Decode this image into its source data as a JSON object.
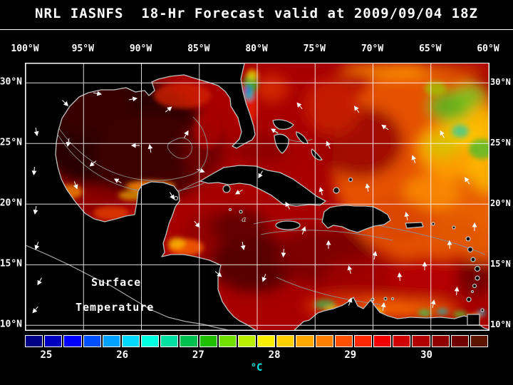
{
  "title": "NRL IASNFS  18-Hr Forecast valid at 2009/09/04 18Z",
  "axes": {
    "lon_labels": [
      "100°W",
      "95°W",
      "90°W",
      "85°W",
      "80°W",
      "75°W",
      "70°W",
      "65°W",
      "60°W"
    ],
    "lat_labels": [
      "30°N",
      "25°N",
      "20°N",
      "15°N",
      "10°N"
    ]
  },
  "map": {
    "annotation_line1": "Surface",
    "annotation_line2": "Temperature",
    "contour_label": "a"
  },
  "colorbar": {
    "unit": "°C",
    "tick_labels": [
      "25",
      "26",
      "27",
      "28",
      "29",
      "30"
    ],
    "segment_colors": [
      "#000085",
      "#0000c0",
      "#0000ff",
      "#0050ff",
      "#00a0ff",
      "#00d8ff",
      "#00ffe0",
      "#00e0a0",
      "#00c050",
      "#20c000",
      "#70e000",
      "#b8f000",
      "#f8f000",
      "#ffd000",
      "#ffa800",
      "#ff8000",
      "#ff5000",
      "#ff2800",
      "#f00000",
      "#d00000",
      "#b00000",
      "#900000",
      "#700000",
      "#5a1400"
    ]
  },
  "colors": {
    "background": "#000000",
    "grid": "#ffffff",
    "coastline": "#c0c0c0",
    "title_text": "#ffffff",
    "unit_label": "#00e8e8"
  }
}
